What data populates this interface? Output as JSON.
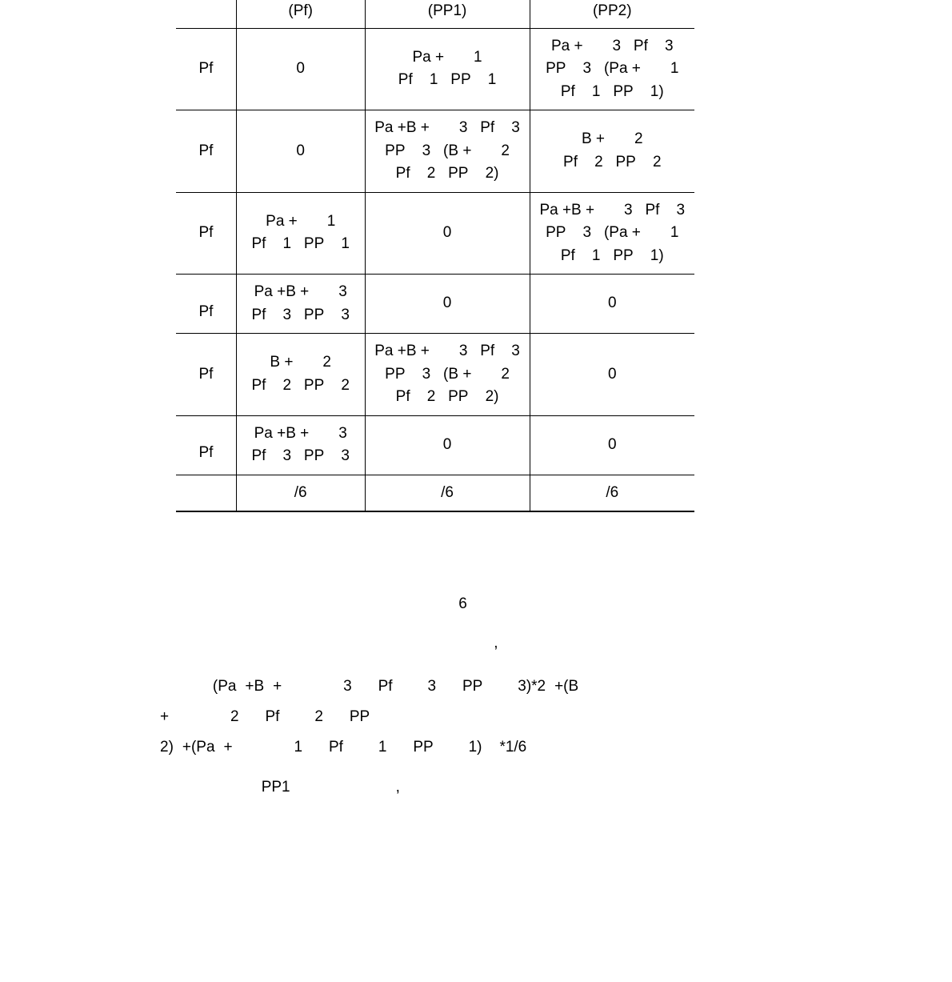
{
  "table": {
    "header": {
      "c0": "",
      "c1": "(Pf)",
      "c2": "(PP1)",
      "c3": "(PP2)"
    },
    "rows": [
      {
        "c0": "Pf",
        "c1": "0",
        "c2": "Pa +       1\nPf    1   PP    1",
        "c3": "Pa +       3   Pf    3\nPP    3   (Pa +       1\nPf    1   PP    1)"
      },
      {
        "c0": "Pf",
        "c1": "0",
        "c2": "Pa +B +       3   Pf    3\nPP    3   (B +       2\nPf    2   PP    2)",
        "c3": "B +       2\nPf    2   PP    2"
      },
      {
        "c0": "Pf",
        "c1": "Pa +       1\nPf    1   PP    1",
        "c2": "0",
        "c3": "Pa +B +       3   Pf    3\nPP    3   (Pa +       1\nPf    1   PP    1)"
      },
      {
        "c0": "Pf",
        "c1": "Pa +B +       3\nPf    3   PP    3",
        "c2": "0",
        "c3": "0"
      },
      {
        "c0": "Pf",
        "c1": "B +       2\nPf    2   PP    2",
        "c2": "Pa +B +       3   Pf    3\nPP    3   (B +       2\nPf    2   PP    2)",
        "c3": "0"
      },
      {
        "c0": "Pf",
        "c1": "Pa +B +       3\nPf    3   PP    3",
        "c2": "0",
        "c3": "0"
      }
    ],
    "footer": {
      "c0": "",
      "c1": "/6",
      "c2": "/6",
      "c3": "/6"
    }
  },
  "body": {
    "line1": "                                  6                                                                          ,",
    "line2": "                                      ,",
    "formula": "      (Pa +B +       3   Pf    3   PP    3)*2 +(B +       2   Pf    2   PP\n2) +(Pa +       1   Pf    1   PP    1)  *1/6",
    "pp1": "                        PP1                         ,"
  }
}
